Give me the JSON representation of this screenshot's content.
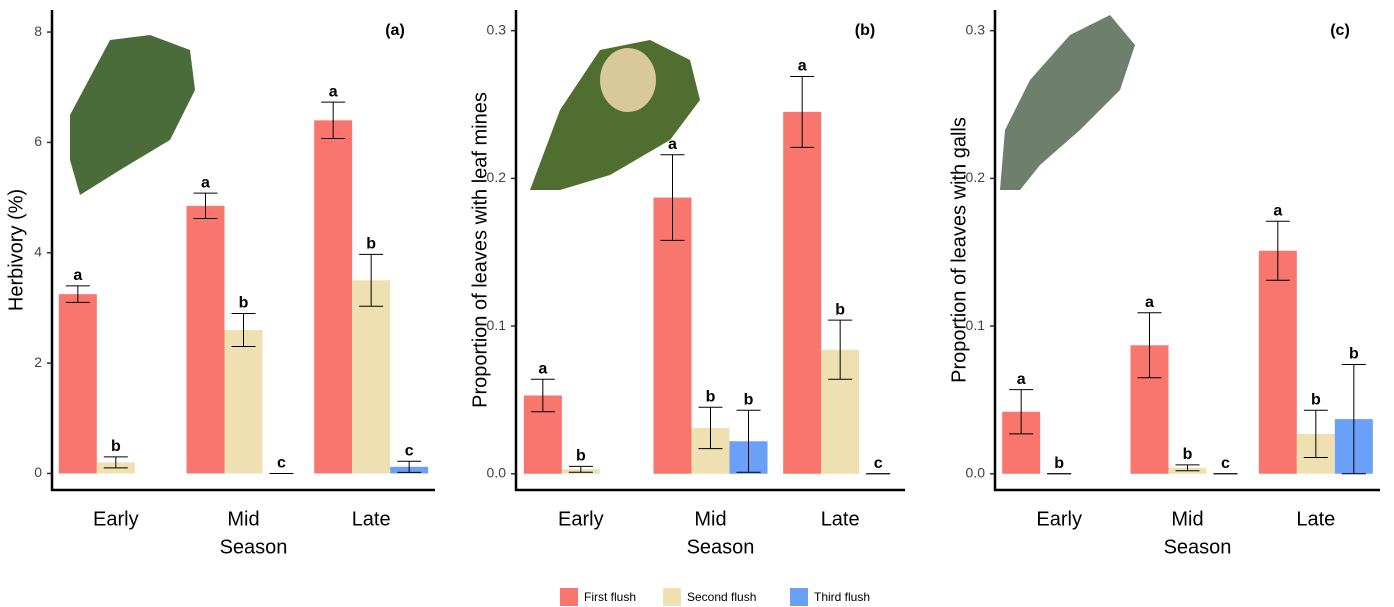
{
  "chart_data": [
    {
      "type": "bar",
      "title": "(a)",
      "x_label": "Season",
      "y_label": "Herbivory (%)",
      "categories": [
        "Early",
        "Mid",
        "Late"
      ],
      "ylim": [
        -0.3,
        8.4
      ],
      "yticks": [
        0,
        2,
        4,
        6,
        8
      ],
      "series": [
        {
          "values": [
            3.25,
            4.85,
            6.4
          ],
          "errors": [
            0.15,
            0.23,
            0.33
          ],
          "letters": [
            "a",
            "a",
            "a"
          ]
        },
        {
          "values": [
            0.2,
            2.6,
            3.5
          ],
          "errors": [
            0.1,
            0.3,
            0.47
          ],
          "letters": [
            "b",
            "b",
            "b"
          ]
        },
        {
          "values": [
            null,
            0,
            0.12
          ],
          "errors": [
            null,
            0,
            0.1
          ],
          "letters": [
            null,
            "c",
            "c"
          ]
        }
      ]
    },
    {
      "type": "bar",
      "title": "(b)",
      "x_label": "Season",
      "y_label": "Proportion of leaves with leaf mines",
      "categories": [
        "Early",
        "Mid",
        "Late"
      ],
      "ylim": [
        -0.011,
        0.314
      ],
      "yticks": [
        {
          "value": 0,
          "label": "0.0"
        },
        0.1,
        0.2,
        0.3
      ],
      "series": [
        {
          "values": [
            0.053,
            0.187,
            0.245
          ],
          "errors": [
            0.011,
            0.029,
            0.024
          ],
          "letters": [
            "a",
            "a",
            "a"
          ]
        },
        {
          "values": [
            0.003,
            0.031,
            0.084
          ],
          "errors": [
            0.002,
            0.014,
            0.02
          ],
          "letters": [
            "b",
            "b",
            "b"
          ]
        },
        {
          "values": [
            null,
            0.022,
            0
          ],
          "errors": [
            null,
            0.021,
            0
          ],
          "letters": [
            null,
            "b",
            "c"
          ]
        }
      ]
    },
    {
      "type": "bar",
      "title": "(c)",
      "x_label": "Season",
      "y_label": "Proportion of leaves with galls",
      "categories": [
        "Early",
        "Mid",
        "Late"
      ],
      "ylim": [
        -0.011,
        0.314
      ],
      "yticks": [
        {
          "value": 0,
          "label": "0.0"
        },
        0.1,
        0.2,
        0.3
      ],
      "series": [
        {
          "values": [
            0.042,
            0.087,
            0.151
          ],
          "errors": [
            0.015,
            0.022,
            0.02
          ],
          "letters": [
            "a",
            "a",
            "a"
          ]
        },
        {
          "values": [
            0,
            0.004,
            0.027
          ],
          "errors": [
            0,
            0.002,
            0.016
          ],
          "letters": [
            "b",
            "b",
            "b"
          ]
        },
        {
          "values": [
            null,
            0,
            0.037
          ],
          "errors": [
            null,
            0,
            0.037
          ],
          "letters": [
            null,
            "c",
            "b"
          ]
        }
      ]
    }
  ],
  "legend": [
    {
      "name": "First flush",
      "color": "#f8766d"
    },
    {
      "name": "Second flush",
      "color": "#eee0b0"
    },
    {
      "name": "Third flush",
      "color": "#6aa0f8"
    }
  ]
}
